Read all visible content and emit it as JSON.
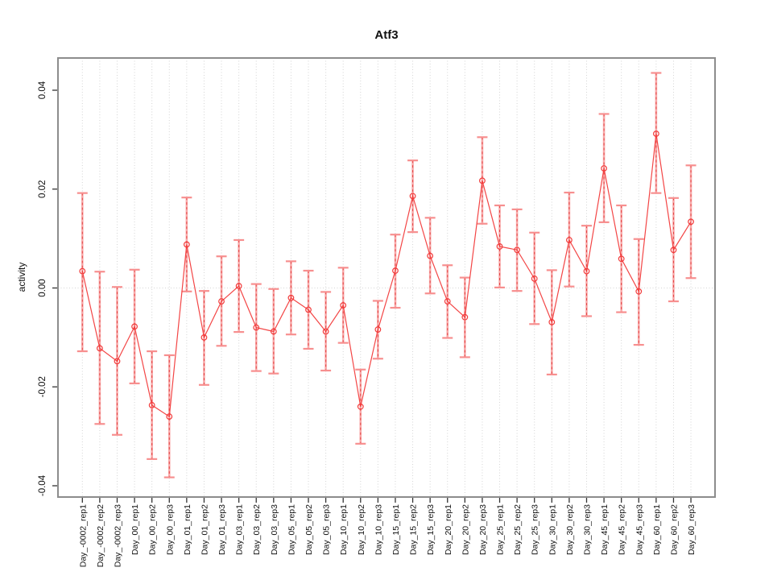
{
  "title": "Atf3",
  "y_axis_label": "activity",
  "colors": {
    "series_line": "#f23b3b",
    "point_stroke": "#f23b3b",
    "error_bar_fill": "#f78f8f",
    "error_bar_dash": "#e23c3c",
    "grid": "#d4d4d4",
    "box_border": "#8c8c8c",
    "tick": "#333333",
    "text": "#111111"
  },
  "chart_data": {
    "type": "line",
    "title": "Atf3",
    "xlabel": "",
    "ylabel": "activity",
    "ylim": [
      -0.042,
      0.047
    ],
    "yticks": [
      -0.04,
      -0.02,
      0,
      0.02,
      0.04
    ],
    "ytick_labels": [
      "-0.04",
      "-0.02",
      "0.00",
      "0.02",
      "0.04"
    ],
    "grid": "dotted vertical line at every category; dotted horizontal line at y=0",
    "legend_position": "none",
    "marker": "open-circle",
    "error_bars": true,
    "categories": [
      "Day_-0002_rep1",
      "Day_-0002_rep2",
      "Day_-0002_rep3",
      "Day_00_rep1",
      "Day_00_rep2",
      "Day_00_rep3",
      "Day_01_rep1",
      "Day_01_rep2",
      "Day_01_rep3",
      "Day_03_rep1",
      "Day_03_rep2",
      "Day_03_rep3",
      "Day_05_rep1",
      "Day_05_rep2",
      "Day_05_rep3",
      "Day_10_rep1",
      "Day_10_rep2",
      "Day_10_rep3",
      "Day_15_rep1",
      "Day_15_rep2",
      "Day_15_rep3",
      "Day_20_rep1",
      "Day_20_rep2",
      "Day_20_rep3",
      "Day_25_rep1",
      "Day_25_rep2",
      "Day_25_rep3",
      "Day_30_rep1",
      "Day_30_rep2",
      "Day_30_rep3",
      "Day_45_rep1",
      "Day_45_rep2",
      "Day_45_rep3",
      "Day_60_rep1",
      "Day_60_rep2",
      "Day_60_rep3"
    ],
    "series": [
      {
        "name": "activity",
        "values": [
          0.0034,
          -0.0122,
          -0.0148,
          -0.0078,
          -0.0237,
          -0.026,
          0.0088,
          -0.01,
          -0.0027,
          0.0004,
          -0.008,
          -0.0088,
          -0.002,
          -0.0044,
          -0.0088,
          -0.0035,
          -0.024,
          -0.0084,
          0.0035,
          0.0186,
          0.0065,
          -0.0027,
          -0.0059,
          0.0217,
          0.0084,
          0.0077,
          0.0019,
          -0.0069,
          0.0097,
          0.0034,
          0.0242,
          0.0059,
          -0.0007,
          0.0312,
          0.0077,
          0.0134
        ],
        "upper": [
          0.0192,
          0.0033,
          0.0002,
          0.0037,
          -0.0128,
          -0.0136,
          0.0183,
          -0.0006,
          0.0064,
          0.0097,
          0.0008,
          -0.0002,
          0.0054,
          0.0035,
          -0.0008,
          0.0041,
          -0.0165,
          -0.0026,
          0.0108,
          0.0258,
          0.0142,
          0.0046,
          0.0021,
          0.0305,
          0.0167,
          0.0159,
          0.0112,
          0.0036,
          0.0193,
          0.0126,
          0.0352,
          0.0167,
          0.0099,
          0.0435,
          0.0182,
          0.0248
        ],
        "lower": [
          -0.0128,
          -0.0275,
          -0.0297,
          -0.0193,
          -0.0346,
          -0.0383,
          -0.0007,
          -0.0196,
          -0.0117,
          -0.0089,
          -0.0168,
          -0.0173,
          -0.0094,
          -0.0123,
          -0.0167,
          -0.0111,
          -0.0315,
          -0.0143,
          -0.004,
          0.0113,
          -0.0011,
          -0.0101,
          -0.014,
          0.013,
          0.0001,
          -0.0006,
          -0.0073,
          -0.0175,
          0.0003,
          -0.0057,
          0.0133,
          -0.0049,
          -0.0115,
          0.0192,
          -0.0027,
          0.002
        ]
      }
    ]
  }
}
